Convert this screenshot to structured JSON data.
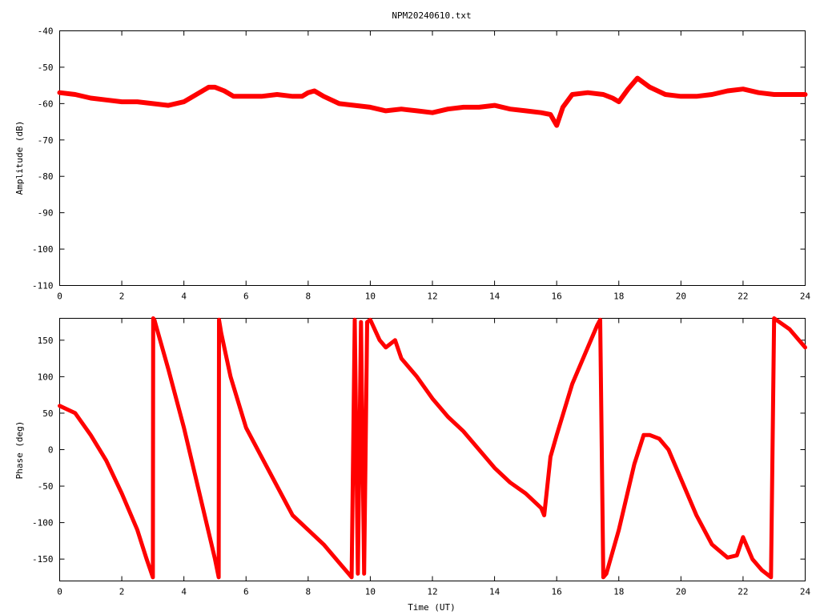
{
  "window": {
    "title": "NPM20240610.txt"
  },
  "colors": {
    "trace": "#ff0000",
    "axes": "#000000",
    "background": "#ffffff"
  },
  "chart_data": [
    {
      "type": "line",
      "title": "NPM20240610.txt",
      "xlabel": "",
      "ylabel": "Amplitude (dB)",
      "xlim": [
        0,
        24
      ],
      "ylim": [
        -110,
        -40
      ],
      "xticks": [
        "0",
        "2",
        "4",
        "6",
        "8",
        "10",
        "12",
        "14",
        "16",
        "18",
        "20",
        "22",
        "24"
      ],
      "yticks": [
        "-40",
        "-50",
        "-60",
        "-70",
        "-80",
        "-90",
        "-100",
        "-110"
      ],
      "grid": false,
      "legend": "none",
      "series": [
        {
          "x": [
            0,
            0.5,
            1,
            1.5,
            2,
            2.5,
            3,
            3.5,
            4,
            4.5,
            4.8,
            5,
            5.3,
            5.6,
            6,
            6.5,
            7,
            7.5,
            7.8,
            8,
            8.2,
            8.5,
            9,
            9.5,
            10,
            10.5,
            11,
            11.5,
            12,
            12.5,
            13,
            13.5,
            14,
            14.5,
            15,
            15.5,
            15.8,
            16,
            16.2,
            16.5,
            17,
            17.5,
            17.8,
            18,
            18.3,
            18.6,
            19,
            19.5,
            20,
            20.5,
            21,
            21.5,
            22,
            22.5,
            23,
            23.5,
            24
          ],
          "y": [
            -57,
            -57.5,
            -58.5,
            -59,
            -59.5,
            -59.5,
            -60,
            -60.5,
            -59.5,
            -57,
            -55.5,
            -55.5,
            -56.5,
            -58,
            -58,
            -58,
            -57.5,
            -58,
            -58,
            -57,
            -56.5,
            -58,
            -60,
            -60.5,
            -61,
            -62,
            -61.5,
            -62,
            -62.5,
            -61.5,
            -61,
            -61,
            -60.5,
            -61.5,
            -62,
            -62.5,
            -63,
            -66,
            -61,
            -57.5,
            -57,
            -57.5,
            -58.5,
            -59.5,
            -56,
            -53,
            -55.5,
            -57.5,
            -58,
            -58,
            -57.5,
            -56.5,
            -56,
            -57,
            -57.5,
            -57.5,
            -57.5
          ]
        }
      ]
    },
    {
      "type": "line",
      "title": "",
      "xlabel": "Time (UT)",
      "ylabel": "Phase (deg)",
      "xlim": [
        0,
        24
      ],
      "ylim": [
        -180,
        180
      ],
      "xticks": [
        "0",
        "2",
        "4",
        "6",
        "8",
        "10",
        "12",
        "14",
        "16",
        "18",
        "20",
        "22",
        "24"
      ],
      "yticks": [
        "150",
        "100",
        "50",
        "0",
        "-50",
        "-100",
        "-150"
      ],
      "grid": false,
      "legend": "none",
      "series": [
        {
          "x": [
            0,
            0.5,
            1,
            1.5,
            2,
            2.5,
            2.8,
            3,
            3.01,
            3.05,
            3.1,
            3.5,
            4,
            4.5,
            5,
            5.12,
            5.13,
            5.2,
            5.5,
            6,
            6.5,
            7,
            7.5,
            8,
            8.5,
            9,
            9.3,
            9.4,
            9.5,
            9.6,
            9.7,
            9.8,
            9.9,
            10,
            10.3,
            10.5,
            10.8,
            11,
            11.5,
            12,
            12.5,
            13,
            13.5,
            14,
            14.5,
            15,
            15.5,
            15.6,
            15.8,
            16,
            16.5,
            17,
            17.3,
            17.4,
            17.5,
            17.6,
            18,
            18.5,
            18.8,
            19,
            19.3,
            19.6,
            20,
            20.5,
            21,
            21.5,
            21.8,
            22,
            22.3,
            22.6,
            22.9,
            23,
            23.5,
            24
          ],
          "y": [
            60,
            50,
            20,
            -15,
            -60,
            -110,
            -150,
            -175,
            180,
            178,
            170,
            110,
            30,
            -60,
            -150,
            -175,
            178,
            160,
            100,
            30,
            -10,
            -50,
            -90,
            -110,
            -130,
            -155,
            -170,
            -175,
            178,
            -170,
            175,
            -170,
            175,
            178,
            150,
            140,
            150,
            125,
            100,
            70,
            45,
            25,
            0,
            -25,
            -45,
            -60,
            -80,
            -90,
            -10,
            20,
            90,
            140,
            170,
            178,
            -175,
            -170,
            -110,
            -20,
            20,
            20,
            15,
            0,
            -40,
            -90,
            -130,
            -148,
            -145,
            -120,
            -150,
            -165,
            -175,
            180,
            165,
            140
          ]
        }
      ]
    }
  ]
}
